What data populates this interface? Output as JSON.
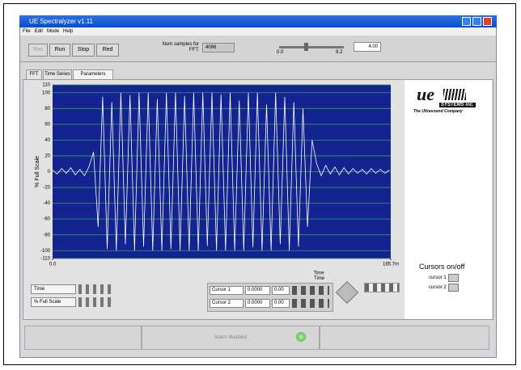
{
  "window": {
    "title": "UE Spectralyzer v1.11",
    "menu": [
      "File",
      "Edit",
      "Mode",
      "Help"
    ]
  },
  "toolbar": {
    "buttons": [
      "Rec",
      "Run",
      "Stop",
      "Red"
    ],
    "num_samples_label": "Num samples for FFT:",
    "num_samples": "4096",
    "slider_min": "0.0",
    "slider_max": "9.2",
    "slider_value": "4.00"
  },
  "tabs": [
    "FFT",
    "Time Series",
    "Parameters"
  ],
  "chart_data": {
    "type": "line",
    "ylabel": "% Full Scale",
    "xlabel": "Time",
    "color": "#ffffff",
    "background": "#13238f",
    "grid_color": "#3f9a6a",
    "grid": true,
    "xlim": [
      0,
      0.1857
    ],
    "xticks": [
      {
        "value": 0,
        "label": "0.0"
      },
      {
        "value": 0.1857,
        "label": "185.7m"
      }
    ],
    "ylim": [
      -110,
      110
    ],
    "yticks": [
      -110,
      -100,
      -80,
      -60,
      -40,
      -20,
      0,
      20,
      40,
      60,
      80,
      100,
      110
    ],
    "x": [
      0,
      0.0025,
      0.005,
      0.0075,
      0.01,
      0.0125,
      0.015,
      0.0175,
      0.02,
      0.0225,
      0.025,
      0.0275,
      0.03,
      0.0325,
      0.035,
      0.0375,
      0.04,
      0.0425,
      0.045,
      0.0475,
      0.05,
      0.0525,
      0.055,
      0.0575,
      0.06,
      0.0625,
      0.065,
      0.0675,
      0.07,
      0.0725,
      0.075,
      0.0775,
      0.08,
      0.0825,
      0.085,
      0.0875,
      0.09,
      0.0925,
      0.095,
      0.0975,
      0.1,
      0.1025,
      0.105,
      0.1075,
      0.11,
      0.1125,
      0.115,
      0.1175,
      0.12,
      0.1225,
      0.125,
      0.1275,
      0.13,
      0.1325,
      0.135,
      0.1375,
      0.14,
      0.1425,
      0.145,
      0.1475,
      0.15,
      0.1525,
      0.155,
      0.1575,
      0.16,
      0.1625,
      0.165,
      0.1675,
      0.17,
      0.1725,
      0.175,
      0.1775,
      0.18,
      0.1825,
      0.185
    ],
    "values": [
      2,
      -3,
      4,
      -2,
      5,
      -4,
      3,
      -5,
      6,
      25,
      -70,
      95,
      -98,
      88,
      -100,
      100,
      -92,
      97,
      -100,
      100,
      -95,
      100,
      -100,
      92,
      -100,
      100,
      -98,
      100,
      -100,
      96,
      -100,
      100,
      -100,
      100,
      -94,
      100,
      -100,
      98,
      -100,
      100,
      -100,
      90,
      -100,
      100,
      -96,
      100,
      -100,
      85,
      -100,
      100,
      -92,
      95,
      -100,
      88,
      -95,
      80,
      -70,
      40,
      10,
      -5,
      8,
      -3,
      6,
      -4,
      5,
      -3,
      4,
      -2,
      3,
      -3,
      4,
      -2,
      3,
      -2,
      2
    ]
  },
  "legend_rows": [
    "Time",
    "% Full Scale"
  ],
  "cursors": {
    "title": "Time",
    "rows": [
      [
        "Cursor 1",
        "0.0000",
        "0.00"
      ],
      [
        "Cursor 2",
        "0.0000",
        "0.00"
      ]
    ]
  },
  "brand": {
    "logo": "ue",
    "company": "SYSTEMS inc.",
    "tagline": "The Ultrasound Company"
  },
  "cursor_toggle": {
    "title": "Cursors on/off",
    "items": [
      "cursor 1",
      "cursor 2"
    ]
  },
  "status": "Alarm disabled"
}
